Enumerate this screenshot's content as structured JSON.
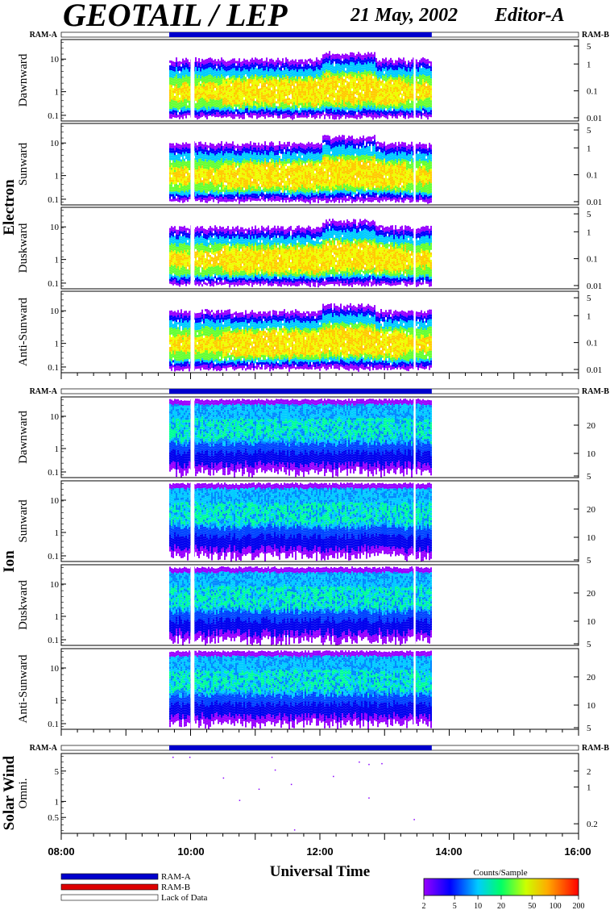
{
  "header": {
    "title": "GEOTAIL / LEP",
    "date": "21 May, 2002",
    "editor": "Editor-A"
  },
  "chart_data": {
    "type": "heatmap",
    "xlabel": "Universal Time",
    "x_ticks": [
      "08:00",
      "10:00",
      "12:00",
      "14:00",
      "16:00"
    ],
    "xlim_hours": [
      8,
      16
    ],
    "data_coverage_hours": [
      9.67,
      13.73
    ],
    "gap_hours": [
      [
        10.0,
        10.06
      ],
      [
        13.45,
        13.48
      ]
    ],
    "ram_labels": {
      "left": "RAM-A",
      "right": "RAM-B"
    },
    "groups": [
      {
        "name": "Electron",
        "panels": [
          {
            "label": "Dawnward",
            "left_ticks": [
              "10",
              "1",
              "0.1"
            ],
            "right_ticks": [
              "5",
              "1",
              "0.1",
              "0.01"
            ]
          },
          {
            "label": "Sunward",
            "left_ticks": [
              "10",
              "1",
              "0.1"
            ],
            "right_ticks": [
              "5",
              "1",
              "0.1",
              "0.01"
            ]
          },
          {
            "label": "Duskward",
            "left_ticks": [
              "10",
              "1",
              "0.1"
            ],
            "right_ticks": [
              "5",
              "1",
              "0.1",
              "0.01"
            ]
          },
          {
            "label": "Anti-Sunward",
            "left_ticks": [
              "10",
              "1",
              "0.1"
            ],
            "right_ticks": [
              "5",
              "1",
              "0.1",
              "0.01"
            ]
          }
        ]
      },
      {
        "name": "Ion",
        "panels": [
          {
            "label": "Dawnward",
            "left_ticks": [
              "10",
              "1",
              "0.1"
            ],
            "right_ticks": [
              "20",
              "10",
              "5"
            ]
          },
          {
            "label": "Sunward",
            "left_ticks": [
              "10",
              "1",
              "0.1"
            ],
            "right_ticks": [
              "20",
              "10",
              "5"
            ]
          },
          {
            "label": "Duskward",
            "left_ticks": [
              "10",
              "1",
              "0.1"
            ],
            "right_ticks": [
              "20",
              "10",
              "5"
            ]
          },
          {
            "label": "Anti-Sunward",
            "left_ticks": [
              "10",
              "1",
              "0.1"
            ],
            "right_ticks": [
              "20",
              "10",
              "5"
            ]
          }
        ]
      },
      {
        "name": "Solar Wind",
        "panels": [
          {
            "label": "Omni.",
            "left_ticks": [
              "5",
              "1",
              "0.5"
            ],
            "right_ticks": [
              "2",
              "1",
              "0.2"
            ]
          }
        ]
      }
    ],
    "legend": {
      "items": [
        "RAM-A",
        "RAM-B",
        "Lack of Data"
      ],
      "colors": {
        "ram_a": "#0000cc",
        "ram_b": "#dd0000",
        "lack": "#ffffff"
      }
    },
    "colorbar": {
      "title": "Counts/Sample",
      "ticks": [
        "2",
        "5",
        "10",
        "20",
        "50",
        "100",
        "200"
      ],
      "log_range": [
        2,
        200
      ]
    }
  }
}
